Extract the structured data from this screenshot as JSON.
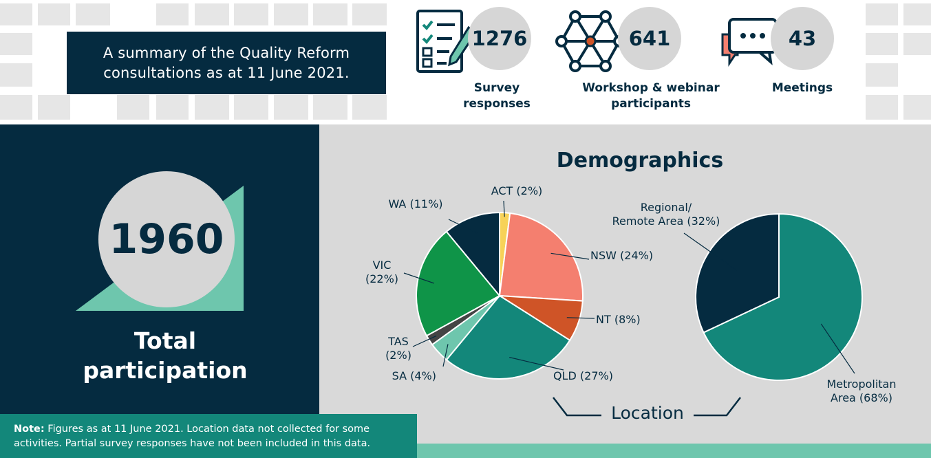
{
  "summary": "A summary of the Quality Reform\nconsultations as at 11 June 2021.",
  "stats": [
    {
      "value": "1276",
      "label": "Survey\nresponses",
      "icon": "survey-checklist-icon"
    },
    {
      "value": "641",
      "label": "Workshop & webinar\nparticipants",
      "icon": "network-icon"
    },
    {
      "value": "43",
      "label": "Meetings",
      "icon": "speech-bubbles-icon"
    }
  ],
  "total": {
    "value": "1960",
    "label": "Total\nparticipation"
  },
  "note": {
    "bold": "Note:",
    "text": " Figures as at 11 June 2021. Location data not collected for some activities. Partial survey responses have not been included in this data."
  },
  "colors": {
    "navy": "#052b40",
    "teal": "#13877a",
    "mint": "#6ec6ad",
    "grey": "#d9d9d9"
  },
  "chart_data": [
    {
      "type": "pie",
      "title": "Demographics",
      "categories": [
        "ACT",
        "NSW",
        "NT",
        "QLD",
        "SA",
        "TAS",
        "VIC",
        "WA"
      ],
      "values": [
        2,
        24,
        8,
        27,
        4,
        2,
        22,
        11
      ],
      "labels": [
        "ACT (2%)",
        "NSW (24%)",
        "NT (8%)",
        "QLD (27%)",
        "SA (4%)",
        "TAS\n(2%)",
        "VIC\n(22%)",
        "WA (11%)"
      ],
      "colors": [
        "#f7d258",
        "#f47f6f",
        "#cf5427",
        "#13877a",
        "#6ec6ad",
        "#444444",
        "#0f9448",
        "#052b40"
      ]
    },
    {
      "type": "pie",
      "categories": [
        "Metropolitan Area",
        "Regional/ Remote Area"
      ],
      "values": [
        68,
        32
      ],
      "labels": [
        "Metropolitan\nArea (68%)",
        "Regional/\nRemote Area (32%)"
      ],
      "colors": [
        "#13877a",
        "#052b40"
      ],
      "group_label": "Location"
    }
  ]
}
